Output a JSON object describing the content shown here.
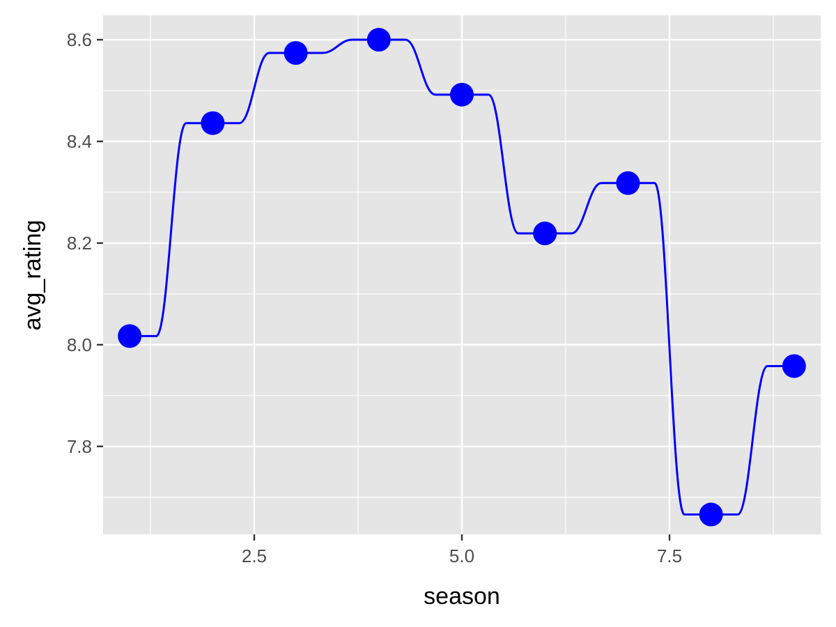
{
  "chart_data": {
    "type": "line",
    "title": "",
    "xlabel": "season",
    "ylabel": "avg_rating",
    "xlim": [
      0.68,
      9.32
    ],
    "ylim": [
      7.627,
      8.648
    ],
    "x_ticks": [
      2.5,
      5.0,
      7.5
    ],
    "x_tick_labels": [
      "2.5",
      "5.0",
      "7.5"
    ],
    "x_minor_ticks": [
      1.25,
      3.75,
      6.25,
      8.75
    ],
    "y_ticks": [
      7.8,
      8.0,
      8.2,
      8.4,
      8.6
    ],
    "y_tick_labels": [
      "7.8",
      "8.0",
      "8.2",
      "8.4",
      "8.6"
    ],
    "y_minor_ticks": [
      7.7,
      7.9,
      8.1,
      8.3,
      8.5
    ],
    "grid": true,
    "legend": "none",
    "series": [
      {
        "x": [
          1,
          2,
          3,
          4,
          5,
          6,
          7,
          8,
          9
        ],
        "y": [
          8.017,
          8.436,
          8.574,
          8.6,
          8.492,
          8.219,
          8.318,
          7.666,
          7.958
        ],
        "line_style": "smoothed step",
        "marker": "circle"
      }
    ],
    "colors": {
      "line": "#0000ff",
      "points": "#0000ff",
      "panel_background": "#e5e5e5",
      "grid": "#ffffff",
      "tick_text": "#4d4d4d",
      "title_text": "#000000"
    }
  }
}
